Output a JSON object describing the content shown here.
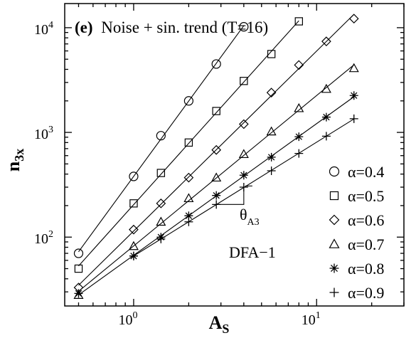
{
  "chart_data": {
    "type": "scatter",
    "title_bold": "(e)",
    "title": "Noise + sin. trend (T=16)",
    "xlabel": "A",
    "xlabel_sub": "S",
    "ylabel": "n",
    "ylabel_sub": "3x",
    "x_scale": "log",
    "y_scale": "log",
    "xlim": [
      0.42,
      30
    ],
    "ylim": [
      22,
      17000
    ],
    "x_ticks": [
      {
        "value": 1,
        "base": "10",
        "exp": "0"
      },
      {
        "value": 10,
        "base": "10",
        "exp": "1"
      }
    ],
    "y_ticks": [
      {
        "value": 100,
        "base": "10",
        "exp": "2"
      },
      {
        "value": 1000,
        "base": "10",
        "exp": "3"
      },
      {
        "value": 10000,
        "base": "10",
        "exp": "4"
      }
    ],
    "grid": false,
    "legend_position": "right",
    "series": [
      {
        "name": "α=0.4",
        "marker": "circle",
        "x": [
          0.5,
          1.0,
          1.41,
          2.0,
          2.83,
          4.0
        ],
        "y": [
          70,
          380,
          930,
          2000,
          4500,
          10200
        ]
      },
      {
        "name": "α=0.5",
        "marker": "square",
        "x": [
          0.5,
          1.0,
          1.41,
          2.0,
          2.83,
          4.0,
          5.66,
          8.0
        ],
        "y": [
          50,
          210,
          410,
          800,
          1600,
          3100,
          5600,
          11500
        ]
      },
      {
        "name": "α=0.6",
        "marker": "diamond",
        "x": [
          0.5,
          1.0,
          1.41,
          2.0,
          2.83,
          4.0,
          5.66,
          8.0,
          11.3,
          16.0
        ],
        "y": [
          33,
          118,
          210,
          370,
          680,
          1200,
          2400,
          4400,
          7400,
          12200
        ]
      },
      {
        "name": "α=0.7",
        "marker": "triangle",
        "x": [
          0.5,
          1.0,
          1.41,
          2.0,
          2.83,
          4.0,
          5.66,
          8.0,
          11.3,
          16.0
        ],
        "y": [
          28,
          82,
          140,
          235,
          370,
          620,
          1020,
          1700,
          2600,
          4100
        ]
      },
      {
        "name": "α=0.8",
        "marker": "star",
        "x": [
          0.5,
          1.0,
          1.41,
          2.0,
          2.83,
          4.0,
          5.66,
          8.0,
          11.3,
          16.0
        ],
        "y": [
          29,
          66,
          100,
          160,
          250,
          390,
          580,
          910,
          1400,
          2250
        ]
      },
      {
        "name": "α=0.9",
        "marker": "plus",
        "x": [
          1.0,
          1.41,
          2.0,
          2.83,
          4.0,
          5.66,
          8.0,
          11.3,
          16.0
        ],
        "y": [
          66,
          96,
          140,
          205,
          300,
          430,
          630,
          920,
          1350
        ]
      }
    ],
    "annotations": {
      "method_label": "DFA−1",
      "slope_symbol": "θ",
      "slope_sub": "A3"
    }
  }
}
